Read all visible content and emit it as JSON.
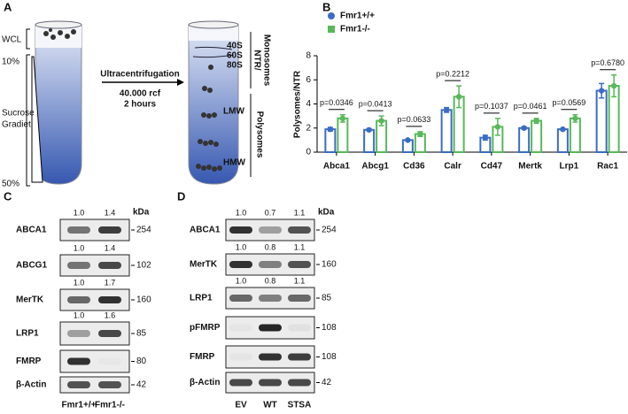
{
  "panel_labels": [
    "A",
    "B",
    "C",
    "D"
  ],
  "diagram": {
    "wcl": "WCL",
    "top_pct": "10%",
    "bottom_pct": "50%",
    "gradient": [
      "Sucrose",
      "Gradiet"
    ],
    "step": "Ultracentrifugation",
    "speed": "40.000 rcf",
    "time": "2 hours",
    "fractions": [
      "40S",
      "60S",
      "80S"
    ],
    "ntr": [
      "NTR/",
      "Monosomes"
    ],
    "polysomes": "Polysomes",
    "lmw": "LMW",
    "hmw": "HMW"
  },
  "chart_data": {
    "type": "bar",
    "y_label": "Polysomes/NTR",
    "categories": [
      "Abca1",
      "Abcg1",
      "Cd36",
      "Calr",
      "Cd47",
      "Mertk",
      "Lrp1",
      "Rac1"
    ],
    "series": [
      {
        "name": "Fmr1+/+",
        "color": "#3b6cc4",
        "values": [
          1.9,
          1.85,
          1.0,
          3.5,
          1.2,
          2.0,
          1.9,
          5.1
        ],
        "errors": [
          0.15,
          0.1,
          0.05,
          0.2,
          0.2,
          0.1,
          0.05,
          0.6
        ]
      },
      {
        "name": "Fmr1-/-",
        "color": "#58b85a",
        "values": [
          2.8,
          2.6,
          1.5,
          4.6,
          2.1,
          2.6,
          2.8,
          5.5
        ],
        "errors": [
          0.3,
          0.4,
          0.2,
          0.9,
          0.7,
          0.2,
          0.3,
          0.9
        ]
      }
    ],
    "annotations": [
      "p=0.0346",
      "p=0.0413",
      "p=0.0633",
      "p=0.2212",
      "p=0.1037",
      "p=0.0461",
      "p=0.0569",
      "p=0.6780"
    ],
    "ylim": [
      0,
      8
    ],
    "yticks": [
      0,
      2,
      4,
      6,
      8
    ],
    "legend": "top-left"
  },
  "blot_c": {
    "kda": "kDa",
    "rows": [
      {
        "label": "ABCA1",
        "ratios": [
          "1.0",
          "1.4"
        ],
        "marker": "254"
      },
      {
        "label": "ABCG1",
        "ratios": [
          "1.0",
          "1.4"
        ],
        "marker": "102"
      },
      {
        "label": "MerTK",
        "ratios": [
          "1.0",
          "1.7"
        ],
        "marker": "160"
      },
      {
        "label": "LRP1",
        "ratios": [
          "1.0",
          "1.6"
        ],
        "marker": "85"
      },
      {
        "label": "FMRP",
        "marker": "80"
      },
      {
        "label": "β-Actin",
        "marker": "42"
      }
    ],
    "lanes": [
      "Fmr1+/+",
      "Fmr1-/-"
    ]
  },
  "blot_d": {
    "kda": "kDa",
    "rows": [
      {
        "label": "ABCA1",
        "ratios": [
          "1.0",
          "0.7",
          "1.1"
        ],
        "marker": "254"
      },
      {
        "label": "MerTK",
        "ratios": [
          "1.0",
          "0.8",
          "1.1"
        ],
        "marker": "160"
      },
      {
        "label": "LRP1",
        "ratios": [
          "1.0",
          "0.8",
          "1.1"
        ],
        "marker": "85"
      },
      {
        "label": "pFMRP",
        "marker": "108"
      },
      {
        "label": "FMRP",
        "marker": "108"
      },
      {
        "label": "β-Actin",
        "marker": "42"
      }
    ],
    "lanes": [
      "EV",
      "WT",
      "STSA"
    ]
  }
}
